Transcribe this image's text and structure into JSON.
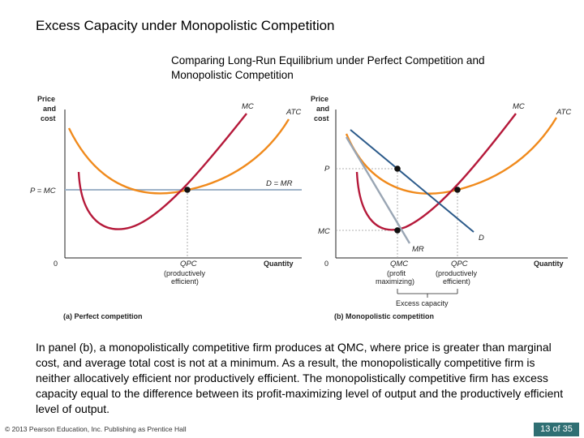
{
  "slide": {
    "title": "Excess Capacity under Monopolistic Competition",
    "subtitle_line1": "Comparing Long-Run Equilibrium under Perfect Competition and",
    "subtitle_line2": "Monopolistic Competition",
    "body": "In panel (b), a monopolistically competitive firm produces at QMC, where price is greater than marginal cost, and average total cost is not at a minimum. As a result, the monopolistically competitive firm is neither allocatively efficient nor productively efficient. The monopolistically competitive firm has excess capacity equal to the difference between its profit-maximizing level of output and the productively efficient level of output.",
    "footer": "© 2013 Pearson Education, Inc. Publishing as Prentice Hall",
    "page": "13 of 35"
  },
  "panel_a": {
    "y_axis_line1": "Price",
    "y_axis_line2": "and",
    "y_axis_line3": "cost",
    "origin": "0",
    "x_axis": "Quantity",
    "mc": "MC",
    "atc": "ATC",
    "price_line": "D = MR",
    "price_label": "P = MC",
    "q_label": "QPC",
    "q_note_line1": "(productively",
    "q_note_line2": "efficient)",
    "caption": "(a) Perfect competition"
  },
  "panel_b": {
    "y_axis_line1": "Price",
    "y_axis_line2": "and",
    "y_axis_line3": "cost",
    "origin": "0",
    "x_axis": "Quantity",
    "mc": "MC",
    "atc": "ATC",
    "p_label": "P",
    "mc_level": "MC",
    "demand": "D",
    "mr": "MR",
    "qmc_label": "QMC",
    "qmc_note_line1": "(profit",
    "qmc_note_line2": "maximizing)",
    "qpc_label": "QPC",
    "qpc_note_line1": "(productively",
    "qpc_note_line2": "efficient)",
    "excess": "Excess capacity",
    "caption": "(b) Monopolistic competition"
  },
  "colors": {
    "mc_curve": "#b5193a",
    "atc_curve": "#f08a1c",
    "price_line": "#9fb3c8",
    "demand": "#2b5a8a",
    "mr": "#9aa6b4",
    "page_badge": "#2f6f73"
  }
}
